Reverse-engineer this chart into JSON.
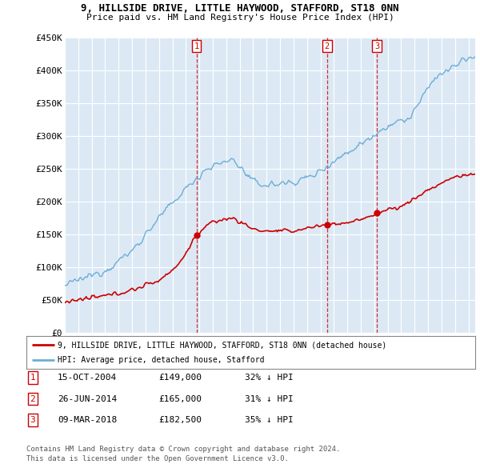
{
  "title": "9, HILLSIDE DRIVE, LITTLE HAYWOOD, STAFFORD, ST18 0NN",
  "subtitle": "Price paid vs. HM Land Registry's House Price Index (HPI)",
  "background_color": "#dce9f5",
  "outer_bg_color": "#ffffff",
  "hpi_color": "#6baed6",
  "price_color": "#cc0000",
  "vline_color": "#cc0000",
  "ylim": [
    0,
    450000
  ],
  "yticks": [
    0,
    50000,
    100000,
    150000,
    200000,
    250000,
    300000,
    350000,
    400000,
    450000
  ],
  "ytick_labels": [
    "£0",
    "£50K",
    "£100K",
    "£150K",
    "£200K",
    "£250K",
    "£300K",
    "£350K",
    "£400K",
    "£450K"
  ],
  "sales": [
    {
      "date_num": 2004.79,
      "price": 149000,
      "label": "1"
    },
    {
      "date_num": 2014.49,
      "price": 165000,
      "label": "2"
    },
    {
      "date_num": 2018.19,
      "price": 182500,
      "label": "3"
    }
  ],
  "sale_dates": [
    "15-OCT-2004",
    "26-JUN-2014",
    "09-MAR-2018"
  ],
  "sale_prices": [
    "£149,000",
    "£165,000",
    "£182,500"
  ],
  "sale_pct": [
    "32% ↓ HPI",
    "31% ↓ HPI",
    "35% ↓ HPI"
  ],
  "legend_property": "9, HILLSIDE DRIVE, LITTLE HAYWOOD, STAFFORD, ST18 0NN (detached house)",
  "legend_hpi": "HPI: Average price, detached house, Stafford",
  "footnote1": "Contains HM Land Registry data © Crown copyright and database right 2024.",
  "footnote2": "This data is licensed under the Open Government Licence v3.0."
}
